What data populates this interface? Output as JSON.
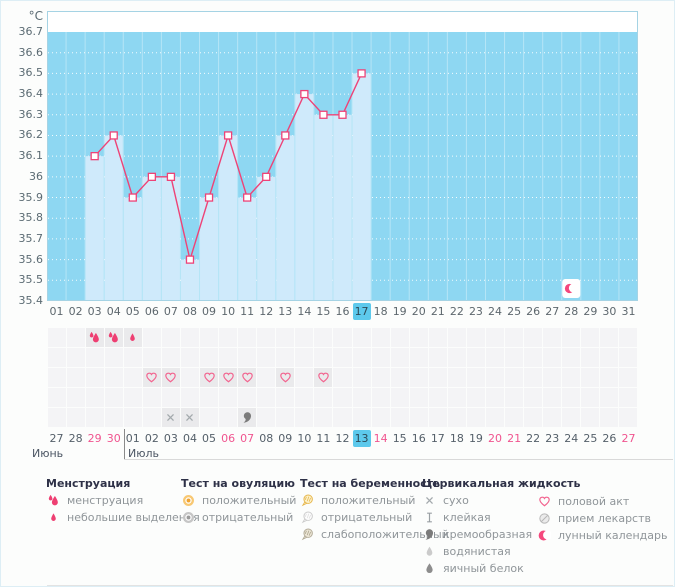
{
  "chart_data": {
    "type": "line",
    "ylabel": "°C",
    "ylim": [
      35.4,
      36.7
    ],
    "ytick_step": 0.1,
    "yticks": [
      "36.7",
      "36.6",
      "36.5",
      "36.4",
      "36.3",
      "36.2",
      "36.1",
      "36",
      "35.9",
      "35.8",
      "35.7",
      "35.6",
      "35.5",
      "35.4"
    ],
    "x_labels": [
      "01",
      "02",
      "03",
      "04",
      "05",
      "06",
      "07",
      "08",
      "09",
      "10",
      "11",
      "12",
      "13",
      "14",
      "15",
      "16",
      "17",
      "18",
      "19",
      "20",
      "21",
      "22",
      "23",
      "24",
      "25",
      "26",
      "27",
      "28",
      "29",
      "30",
      "31"
    ],
    "series": [
      {
        "name": "basal-temperature",
        "values": [
          null,
          null,
          36.1,
          36.2,
          35.9,
          36.0,
          36.0,
          35.6,
          35.9,
          36.2,
          35.9,
          36.0,
          36.2,
          36.4,
          36.3,
          36.3,
          36.5,
          null,
          null,
          null,
          null,
          null,
          null,
          null,
          null,
          null,
          null,
          null,
          null,
          null,
          null
        ]
      }
    ],
    "today_cycle_day": "17",
    "lunar_marker_day": 28,
    "grid": "dotted-white",
    "legend_position": "bottom",
    "colors": {
      "plot_bg": "#8ed7f2",
      "column_fill": "#cfeafb",
      "line": "#ee4377",
      "marker_fill": "#ffffff",
      "plot_border": "#a5d3e4",
      "highlight": "#5dc9ec",
      "weekend": "#f0548f",
      "menstruation": "#ee3f72",
      "heart": "#f2648f",
      "crescent": "#f5487d"
    }
  },
  "event_rows": [
    {
      "name": "menstruation",
      "events": [
        {
          "day": 3,
          "icon": "drop-heavy"
        },
        {
          "day": 4,
          "icon": "drop-heavy"
        },
        {
          "day": 5,
          "icon": "drop-light"
        }
      ]
    },
    {
      "name": "tests",
      "events": []
    },
    {
      "name": "intercourse",
      "events": [
        {
          "day": 6,
          "icon": "heart"
        },
        {
          "day": 7,
          "icon": "heart"
        },
        {
          "day": 9,
          "icon": "heart"
        },
        {
          "day": 10,
          "icon": "heart"
        },
        {
          "day": 11,
          "icon": "heart"
        },
        {
          "day": 13,
          "icon": "heart"
        },
        {
          "day": 15,
          "icon": "heart"
        }
      ]
    },
    {
      "name": "medication",
      "events": []
    },
    {
      "name": "cervical-fluid",
      "events": [
        {
          "day": 7,
          "icon": "cross"
        },
        {
          "day": 8,
          "icon": "cross"
        },
        {
          "day": 11,
          "icon": "comma"
        }
      ]
    }
  ],
  "calendar": {
    "days": [
      {
        "label": "27",
        "type": "normal"
      },
      {
        "label": "28",
        "type": "normal"
      },
      {
        "label": "29",
        "type": "weekend"
      },
      {
        "label": "30",
        "type": "weekend"
      },
      {
        "label": "01",
        "type": "normal"
      },
      {
        "label": "02",
        "type": "normal"
      },
      {
        "label": "03",
        "type": "normal"
      },
      {
        "label": "04",
        "type": "normal"
      },
      {
        "label": "05",
        "type": "normal"
      },
      {
        "label": "06",
        "type": "weekend"
      },
      {
        "label": "07",
        "type": "weekend"
      },
      {
        "label": "08",
        "type": "normal"
      },
      {
        "label": "09",
        "type": "normal"
      },
      {
        "label": "10",
        "type": "normal"
      },
      {
        "label": "11",
        "type": "normal"
      },
      {
        "label": "12",
        "type": "normal"
      },
      {
        "label": "13",
        "type": "today"
      },
      {
        "label": "14",
        "type": "weekend"
      },
      {
        "label": "15",
        "type": "normal"
      },
      {
        "label": "16",
        "type": "normal"
      },
      {
        "label": "17",
        "type": "normal"
      },
      {
        "label": "18",
        "type": "normal"
      },
      {
        "label": "19",
        "type": "normal"
      },
      {
        "label": "20",
        "type": "weekend"
      },
      {
        "label": "21",
        "type": "weekend"
      },
      {
        "label": "22",
        "type": "normal"
      },
      {
        "label": "23",
        "type": "normal"
      },
      {
        "label": "24",
        "type": "normal"
      },
      {
        "label": "25",
        "type": "normal"
      },
      {
        "label": "26",
        "type": "normal"
      },
      {
        "label": "27",
        "type": "weekend"
      }
    ],
    "months": [
      {
        "label": "Июнь"
      },
      {
        "label": "Июль"
      }
    ],
    "month_divider_after_column": 4
  },
  "legend": {
    "groups": [
      {
        "header": "Менструация",
        "items": [
          {
            "icon": "drop-heavy",
            "label": "менструация"
          },
          {
            "icon": "drop-light",
            "label": "небольшие выделения"
          }
        ]
      },
      {
        "header": "Тест на овуляцию",
        "items": [
          {
            "icon": "donut-orange",
            "label": "положительный"
          },
          {
            "icon": "donut-grey",
            "label": "отрицательный"
          }
        ]
      },
      {
        "header": "Тест на беременность",
        "items": [
          {
            "icon": "balloon-yellow",
            "label": "положительный"
          },
          {
            "icon": "balloon-white",
            "label": "отрицательный"
          },
          {
            "icon": "balloon-grey",
            "label": "слабоположительный"
          }
        ]
      },
      {
        "header": "Цервикальная жидкость",
        "items": [
          {
            "icon": "cross",
            "label": "сухо"
          },
          {
            "icon": "ibeam",
            "label": "клейкая"
          },
          {
            "icon": "comma",
            "label": "кремообразная"
          },
          {
            "icon": "drop-grey-light",
            "label": "водянистая"
          },
          {
            "icon": "drop-grey-dark",
            "label": "яичный белок"
          }
        ]
      },
      {
        "header": "",
        "items": [
          {
            "icon": "heart",
            "label": "половой акт"
          },
          {
            "icon": "pill",
            "label": "прием лекарств"
          },
          {
            "icon": "crescent",
            "label": "лунный календарь"
          }
        ]
      }
    ]
  }
}
